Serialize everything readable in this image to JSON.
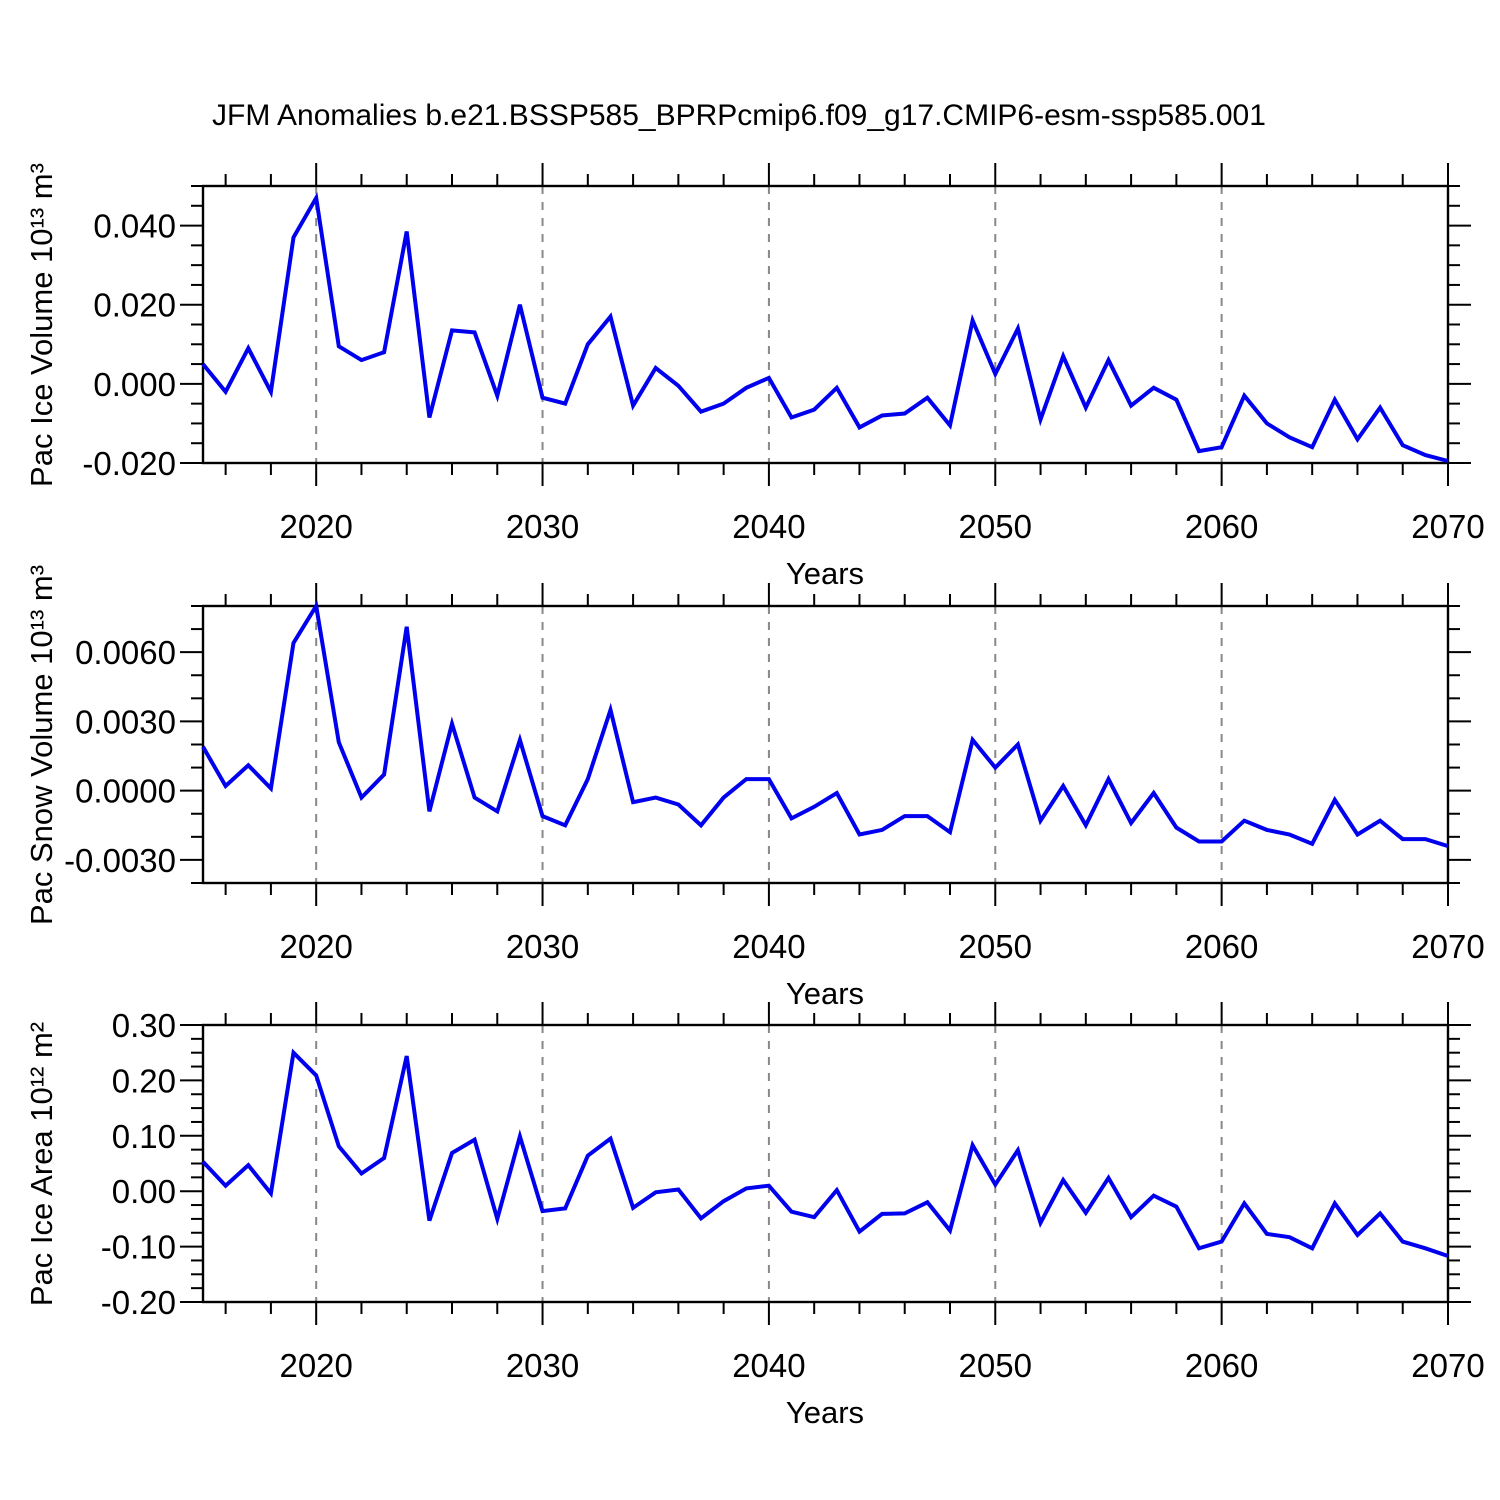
{
  "title": "JFM Anomalies b.e21.BSSP585_BPRPcmip6.f09_g17.CMIP6-esm-ssp585.001",
  "colors": {
    "line": "#0000ee",
    "grid": "#888888",
    "axis": "#000000",
    "text": "#000000",
    "background": "#ffffff"
  },
  "chart_data": [
    {
      "type": "line",
      "title": "",
      "ylabel": "Pac Ice Volume 10¹³ m³",
      "xlabel": "Years",
      "x_start": 2015,
      "x_end": 2070,
      "x_step": 1,
      "xlim": [
        2015,
        2070
      ],
      "ylim": [
        -0.02,
        0.05
      ],
      "xticks": [
        2020,
        2030,
        2040,
        2050,
        2060,
        2070
      ],
      "xtick_labels": [
        "2020",
        "2030",
        "2040",
        "2050",
        "2060",
        "2070"
      ],
      "xtick_minor_step": 2,
      "yticks": [
        0.04,
        0.02,
        0.0,
        -0.02
      ],
      "ytick_labels": [
        "0.040",
        "0.020",
        "0.000",
        "-0.020"
      ],
      "ytick_minor_step": 0.005,
      "gridlines_x": [
        2020,
        2030,
        2040,
        2050,
        2060
      ],
      "grid": true,
      "legend": null,
      "values": [
        0.005,
        -0.002,
        0.009,
        -0.002,
        0.037,
        0.047,
        0.0095,
        0.006,
        0.008,
        0.0385,
        -0.0085,
        0.0135,
        0.013,
        -0.003,
        0.02,
        -0.0035,
        -0.005,
        0.01,
        0.017,
        -0.0055,
        0.004,
        -0.0005,
        -0.007,
        -0.005,
        -0.001,
        0.0015,
        -0.0085,
        -0.0065,
        -0.001,
        -0.011,
        -0.008,
        -0.0075,
        -0.0035,
        -0.0105,
        0.016,
        0.0025,
        0.014,
        -0.009,
        0.007,
        -0.006,
        0.006,
        -0.0055,
        -0.001,
        -0.004,
        -0.017,
        -0.016,
        -0.003,
        -0.01,
        -0.0135,
        -0.016,
        -0.004,
        -0.014,
        -0.006,
        -0.0155,
        -0.018,
        -0.0195
      ]
    },
    {
      "type": "line",
      "title": "",
      "ylabel": "Pac Snow Volume 10¹³ m³",
      "xlabel": "Years",
      "x_start": 2015,
      "x_end": 2070,
      "x_step": 1,
      "xlim": [
        2015,
        2070
      ],
      "ylim": [
        -0.004,
        0.008
      ],
      "xticks": [
        2020,
        2030,
        2040,
        2050,
        2060,
        2070
      ],
      "xtick_labels": [
        "2020",
        "2030",
        "2040",
        "2050",
        "2060",
        "2070"
      ],
      "xtick_minor_step": 2,
      "yticks": [
        0.006,
        0.003,
        0.0,
        -0.003
      ],
      "ytick_labels": [
        "0.0060",
        "0.0030",
        "0.0000",
        "-0.0030"
      ],
      "ytick_minor_step": 0.001,
      "gridlines_x": [
        2020,
        2030,
        2040,
        2050,
        2060
      ],
      "grid": true,
      "legend": null,
      "values": [
        0.0019,
        0.0002,
        0.0011,
        0.0001,
        0.0064,
        0.008,
        0.0021,
        -0.0003,
        0.0007,
        0.0071,
        -0.0009,
        0.0029,
        -0.0003,
        -0.0009,
        0.0022,
        -0.0011,
        -0.0015,
        0.0005,
        0.0035,
        -0.0005,
        -0.0003,
        -0.0006,
        -0.0015,
        -0.0003,
        0.0005,
        0.0005,
        -0.0012,
        -0.0007,
        -0.0001,
        -0.0019,
        -0.0017,
        -0.0011,
        -0.0011,
        -0.0018,
        0.0022,
        0.001,
        0.002,
        -0.0013,
        0.0002,
        -0.0015,
        0.0005,
        -0.0014,
        -0.0001,
        -0.0016,
        -0.0022,
        -0.0022,
        -0.0013,
        -0.0017,
        -0.0019,
        -0.0023,
        -0.0004,
        -0.0019,
        -0.0013,
        -0.0021,
        -0.0021,
        -0.0024
      ]
    },
    {
      "type": "line",
      "title": "",
      "ylabel": "Pac Ice Area 10¹² m²",
      "xlabel": "Years",
      "x_start": 2015,
      "x_end": 2070,
      "x_step": 1,
      "xlim": [
        2015,
        2070
      ],
      "ylim": [
        -0.2,
        0.3
      ],
      "xticks": [
        2020,
        2030,
        2040,
        2050,
        2060,
        2070
      ],
      "xtick_labels": [
        "2020",
        "2030",
        "2040",
        "2050",
        "2060",
        "2070"
      ],
      "xtick_minor_step": 2,
      "yticks": [
        0.3,
        0.2,
        0.1,
        0.0,
        -0.1,
        -0.2
      ],
      "ytick_labels": [
        "0.30",
        "0.20",
        "0.10",
        "0.00",
        "-0.10",
        "-0.20"
      ],
      "ytick_minor_step": 0.025,
      "gridlines_x": [
        2020,
        2030,
        2040,
        2050,
        2060
      ],
      "grid": true,
      "legend": null,
      "values": [
        0.053,
        0.01,
        0.047,
        -0.004,
        0.25,
        0.209,
        0.081,
        0.032,
        0.06,
        0.244,
        -0.053,
        0.069,
        0.093,
        -0.05,
        0.099,
        -0.036,
        -0.031,
        0.064,
        0.095,
        -0.03,
        -0.002,
        0.003,
        -0.049,
        -0.018,
        0.005,
        0.01,
        -0.037,
        -0.047,
        0.002,
        -0.073,
        -0.041,
        -0.04,
        -0.02,
        -0.071,
        0.083,
        0.012,
        0.074,
        -0.057,
        0.02,
        -0.039,
        0.024,
        -0.047,
        -0.008,
        -0.028,
        -0.103,
        -0.091,
        -0.022,
        -0.077,
        -0.083,
        -0.103,
        -0.022,
        -0.079,
        -0.04,
        -0.091,
        -0.103,
        -0.117
      ]
    }
  ]
}
